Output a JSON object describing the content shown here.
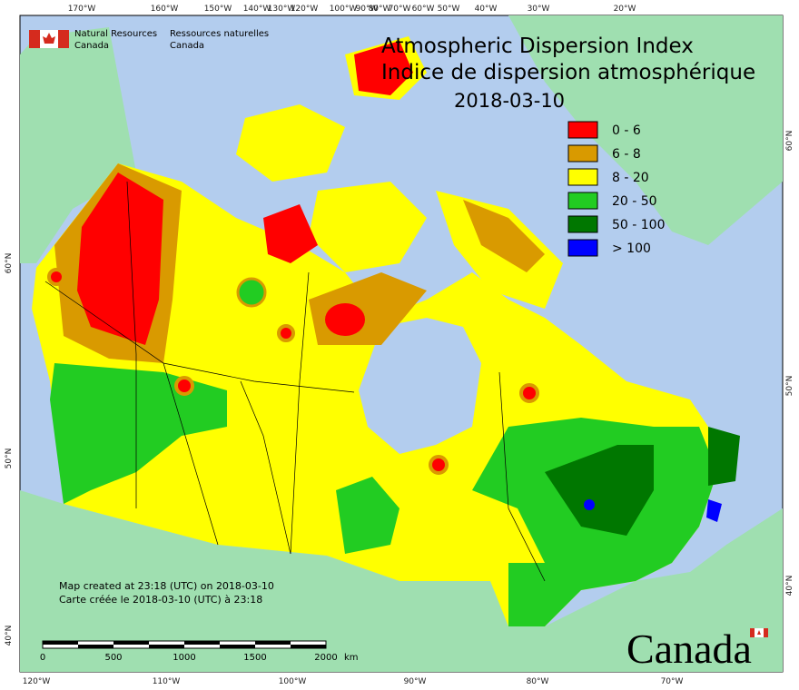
{
  "header": {
    "org_en_1": "Natural Resources",
    "org_en_2": "Canada",
    "org_fr_1": "Ressources naturelles",
    "org_fr_2": "Canada"
  },
  "title": {
    "en": "Atmospheric Dispersion Index",
    "fr": "Indice de dispersion atmosphérique",
    "date": "2018-03-10"
  },
  "legend": [
    {
      "label": "0 - 6",
      "color": "#ff0000"
    },
    {
      "label": "6 - 8",
      "color": "#d99a00"
    },
    {
      "label": "8 - 20",
      "color": "#ffff00"
    },
    {
      "label": "20 - 50",
      "color": "#22cc22"
    },
    {
      "label": "50 - 100",
      "color": "#007700"
    },
    {
      "label": "> 100",
      "color": "#0000ff"
    }
  ],
  "graticule": {
    "top": [
      "170°W",
      "160°W",
      "150°W",
      "140°W",
      "130°W",
      "120°W",
      "100°W",
      "90°W",
      "80°W",
      "70°W",
      "60°W",
      "50°W",
      "40°W",
      "30°W",
      "20°W"
    ],
    "bottom": [
      "120°W",
      "110°W",
      "100°W",
      "90°W",
      "80°W",
      "70°W"
    ],
    "left": [
      "60°N",
      "50°N",
      "40°N"
    ],
    "right": [
      "60°N",
      "50°N",
      "40°N"
    ]
  },
  "footer": {
    "created_en": "Map created at 23:18 (UTC) on 2018-03-10",
    "created_fr": "Carte créée le 2018-03-10 (UTC) à 23:18"
  },
  "scale_bar": {
    "labels": [
      "0",
      "500",
      "1000",
      "1500",
      "2000"
    ],
    "unit": "km"
  },
  "wordmark": "Canada"
}
